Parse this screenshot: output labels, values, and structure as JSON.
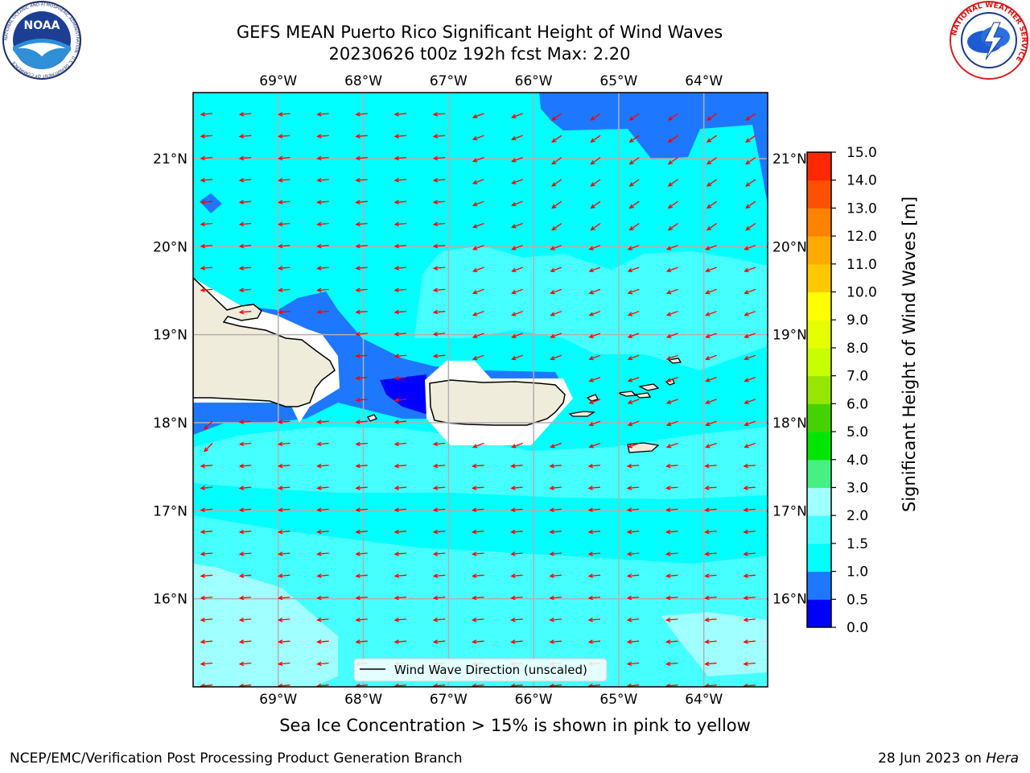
{
  "title": {
    "line1": "GEFS MEAN Puerto Rico Significant Height of Wind Waves",
    "line2": "20230626 t00z 192h fcst   Max: 2.20"
  },
  "logos": {
    "noaa": {
      "text": "NOAA",
      "ring_text": "NATIONAL OCEANIC AND ATMOSPHERIC ADMINISTRATION · U.S. DEPARTMENT OF COMMERCE"
    },
    "nws": {
      "ring_text": "NATIONAL WEATHER SERVICE"
    }
  },
  "map": {
    "lon_labels": [
      "69°W",
      "68°W",
      "67°W",
      "66°W",
      "65°W",
      "64°W"
    ],
    "lat_labels": [
      "21°N",
      "20°N",
      "19°N",
      "18°N",
      "17°N",
      "16°N"
    ],
    "lon_values": [
      -69,
      -68,
      -67,
      -66,
      -65,
      -64
    ],
    "lat_values": [
      21,
      20,
      19,
      18,
      17,
      16
    ],
    "extent": {
      "lon_min": -70,
      "lon_max": -63.25,
      "lat_min": 15,
      "lat_max": 21.75
    },
    "legend_label": "Wind Wave Direction (unscaled)",
    "arrow_color": "#ff0000",
    "land_color": "#efecdc",
    "grid_color": "#b0b0b0"
  },
  "colorbar": {
    "label": "Significant Height of Wind Waves [m]",
    "ticks": [
      "0.0",
      "0.5",
      "1.0",
      "1.5",
      "2.0",
      "3.0",
      "4.0",
      "5.0",
      "6.0",
      "7.0",
      "8.0",
      "9.0",
      "10.0",
      "11.0",
      "12.0",
      "13.0",
      "14.0",
      "15.0"
    ],
    "colors": [
      "#0000ff",
      "#1e78ff",
      "#00ffff",
      "#46ffff",
      "#a0ffff",
      "#46f082",
      "#00e600",
      "#46d200",
      "#96e600",
      "#c8ff00",
      "#e6ff00",
      "#ffff00",
      "#ffc800",
      "#ffaa00",
      "#ff8200",
      "#ff5000",
      "#ff2800",
      "#ff0000"
    ]
  },
  "note": "Sea Ice Concentration > 15% is shown in pink to yellow",
  "footer": {
    "left": "NCEP/EMC/Verification Post Processing Product Generation Branch",
    "right_date": "28 Jun 2023 on ",
    "right_host": "Hera"
  }
}
